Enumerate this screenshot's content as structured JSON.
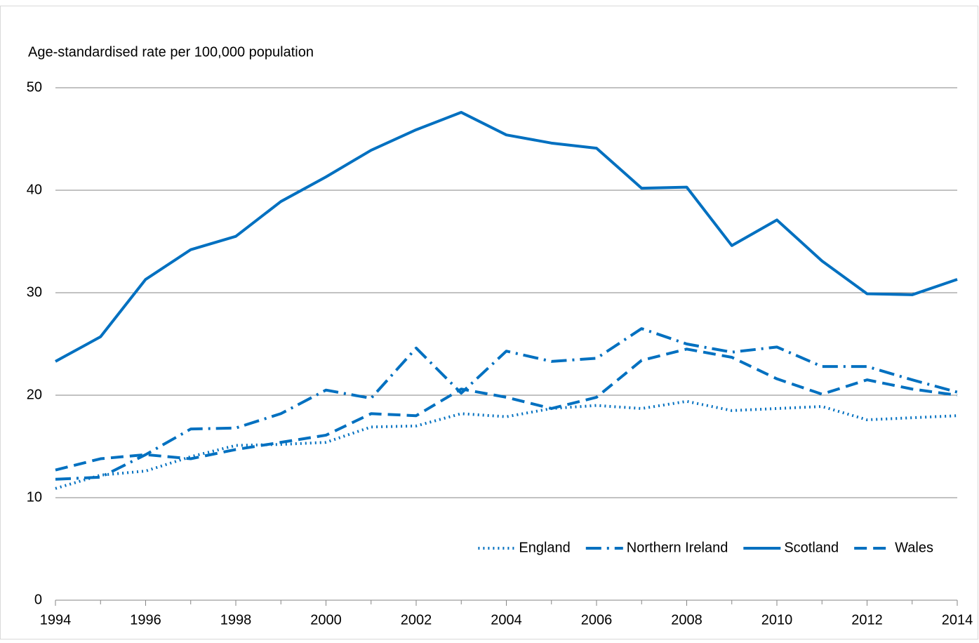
{
  "chart_data": {
    "type": "line",
    "y_label": "Age-standardised rate per 100,000 population",
    "x": [
      1994,
      1995,
      1996,
      1997,
      1998,
      1999,
      2000,
      2001,
      2002,
      2003,
      2004,
      2005,
      2006,
      2007,
      2008,
      2009,
      2010,
      2011,
      2012,
      2013,
      2014
    ],
    "series": [
      {
        "name": "England",
        "color": "#0070c0",
        "dash": "dotted",
        "values": [
          10.9,
          12.2,
          12.6,
          14.0,
          15.1,
          15.2,
          15.4,
          16.9,
          17.0,
          18.2,
          17.9,
          18.7,
          19.0,
          18.7,
          19.4,
          18.5,
          18.7,
          18.9,
          17.6,
          17.8,
          18.0
        ]
      },
      {
        "name": "Northern Ireland",
        "color": "#0070c0",
        "dash": "dashdot",
        "values": [
          11.8,
          12.0,
          14.2,
          16.7,
          16.8,
          18.2,
          20.5,
          19.7,
          24.6,
          20.2,
          24.3,
          23.3,
          23.6,
          26.5,
          25.0,
          24.2,
          24.7,
          22.8,
          22.8,
          21.5,
          20.3
        ]
      },
      {
        "name": "Scotland",
        "color": "#0070c0",
        "dash": "solid",
        "values": [
          23.3,
          25.7,
          31.3,
          34.2,
          35.5,
          38.9,
          41.3,
          43.9,
          45.9,
          47.6,
          45.4,
          44.6,
          44.1,
          40.2,
          40.3,
          34.6,
          37.1,
          33.1,
          29.9,
          29.8,
          31.3
        ]
      },
      {
        "name": "Wales",
        "color": "#0070c0",
        "dash": "dashed",
        "values": [
          12.7,
          13.8,
          14.2,
          13.8,
          14.7,
          15.4,
          16.1,
          18.2,
          18.0,
          20.6,
          19.8,
          18.7,
          19.8,
          23.4,
          24.5,
          23.7,
          21.6,
          20.1,
          21.5,
          20.6,
          20.0
        ]
      }
    ],
    "xlim": [
      1994,
      2014
    ],
    "xticks": [
      1994,
      1996,
      1998,
      2000,
      2002,
      2004,
      2006,
      2008,
      2010,
      2012,
      2014
    ],
    "ylim": [
      0,
      50
    ],
    "yticks": [
      0,
      10,
      20,
      30,
      40,
      50
    ],
    "grid": true,
    "legend": "lower right"
  }
}
